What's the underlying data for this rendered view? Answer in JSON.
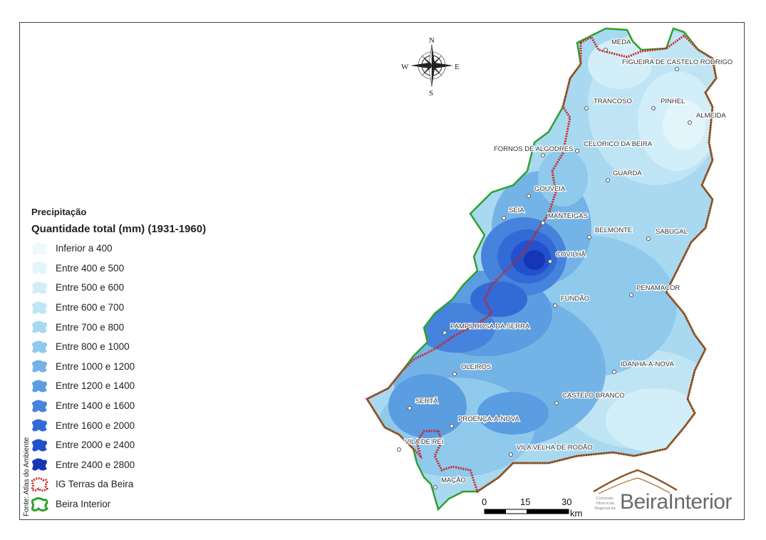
{
  "legend": {
    "title": "Precipitação",
    "subtitle": "Quantidade total (mm) (1931-1960)",
    "classes": [
      {
        "label": "Inferior a 400",
        "color": "#eef9fb"
      },
      {
        "label": "Entre 400 e 500",
        "color": "#e2f5fa"
      },
      {
        "label": "Entre 500 e 600",
        "color": "#d2eef8"
      },
      {
        "label": "Entre 600 e 700",
        "color": "#bfe5f5"
      },
      {
        "label": "Entre 700 e 800",
        "color": "#a9d9f1"
      },
      {
        "label": "Entre 800 e 1000",
        "color": "#8fc9ec"
      },
      {
        "label": "Entre 1000 e 1200",
        "color": "#74b3e6"
      },
      {
        "label": "Entre 1200 e 1400",
        "color": "#5b9de1"
      },
      {
        "label": "Entre 1400 e 1600",
        "color": "#4683dd"
      },
      {
        "label": "Entre 1600 e 2000",
        "color": "#336bd6"
      },
      {
        "label": "Entre 2000 e 2400",
        "color": "#2350cc"
      },
      {
        "label": "Entre 2400 e 2800",
        "color": "#1636b8"
      }
    ],
    "boundaries": [
      {
        "label": "IG Terras da Beira",
        "color": "#cc2222"
      },
      {
        "label": "Beira Interior",
        "color": "#2ea02e"
      }
    ]
  },
  "source": "Fonte: Atlas do Ambiente",
  "compass": {
    "n": "N",
    "s": "S",
    "e": "E",
    "w": "W"
  },
  "places": {
    "meda": "MEDA",
    "figueira": "FIGUEIRA DE CASTELO RODRIGO",
    "trancoso": "TRANCOSO",
    "pinhel": "PINHEL",
    "almeida": "ALMEIDA",
    "fornos": "FORNOS DE ALGODRES",
    "celorico": "CELORICO DA BEIRA",
    "guarda": "GUARDA",
    "gouveia": "GOUVEIA",
    "seia": "SEIA",
    "manteigas": "MANTEIGAS",
    "belmonte": "BELMONTE",
    "sabugal": "SABUGAL",
    "covilha": "COVILHÃ",
    "penamacor": "PENAMACOR",
    "fundao": "FUNDÃO",
    "pampilhosa": "PAMPILHOSA DA SERRA",
    "oleiros": "OLEIROS",
    "idanha": "IDANHA-A-NOVA",
    "sertã": "SERTÃ",
    "castelo_branco": "CASTELO BRANCO",
    "proenca": "PROENÇA-A-NOVA",
    "vila_de_rei": "VILA DE REI",
    "vila_velha": "VILA VELHA DE RODÃO",
    "macao": "MAÇÃO"
  },
  "scale": {
    "t0": "0",
    "t1": "15",
    "t2": "30",
    "unit": "km"
  },
  "logo": {
    "brand": "Beira",
    "brand2": "Interior",
    "small": "Comissão Vitivinícola Regional da"
  }
}
